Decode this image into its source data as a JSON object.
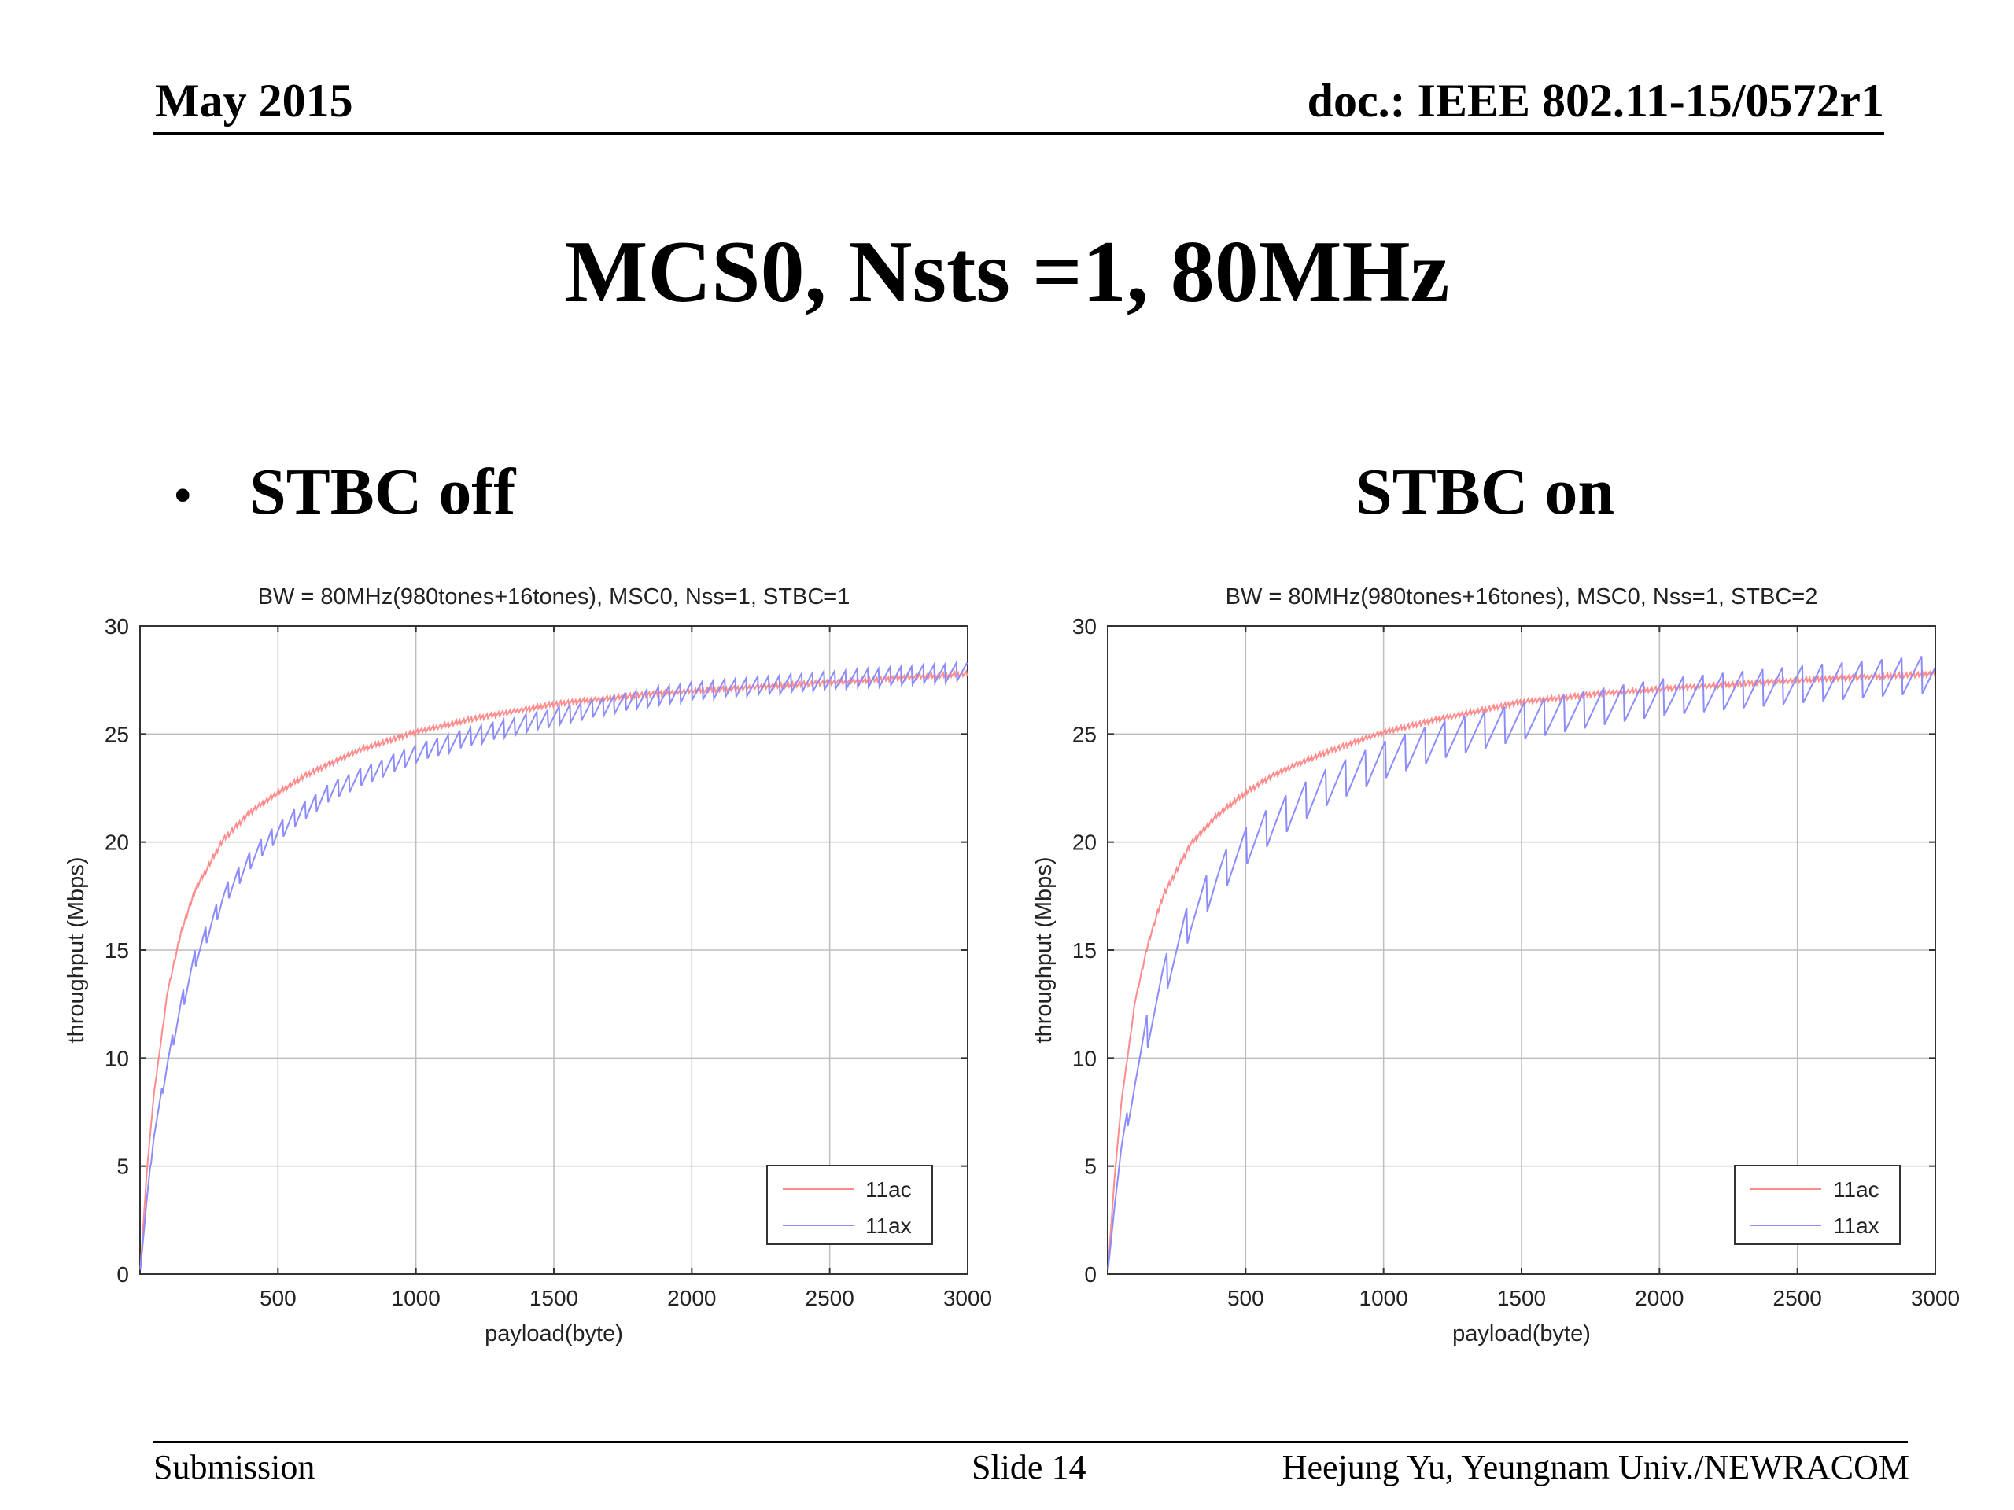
{
  "header": {
    "date": "May 2015",
    "doc": "doc.: IEEE 802.11-15/0572r1"
  },
  "slide_title": "MCS0, Nsts =1, 80MHz",
  "subtitles": {
    "left": "STBC off",
    "right": "STBC on",
    "bullet": "•"
  },
  "footer": {
    "left": "Submission",
    "center": "Slide 14",
    "right": "Heejung Yu, Yeungnam Univ./NEWRACOM"
  },
  "colors": {
    "series_11ac": "#ff8c8c",
    "series_11ax": "#8c8cff",
    "grid": "#bdbdbd"
  },
  "chart_data": [
    {
      "type": "line",
      "title": "BW = 80MHz(980tones+16tones), MSC0, Nss=1, STBC=1",
      "xlabel": "payload(byte)",
      "ylabel": "throughput (Mbps)",
      "xlim": [
        0,
        3000
      ],
      "ylim": [
        0,
        30
      ],
      "xticks": [
        500,
        1000,
        1500,
        2000,
        2500,
        3000
      ],
      "yticks": [
        0,
        5,
        10,
        15,
        20,
        25,
        30
      ],
      "grid": true,
      "legend_position": "bottom-right",
      "series": [
        {
          "name": "11ac",
          "x": [
            1,
            25,
            50,
            100,
            150,
            200,
            300,
            400,
            500,
            600,
            700,
            800,
            1000,
            1200,
            1500,
            1800,
            2000,
            2500,
            3000
          ],
          "y": [
            0.2,
            4.8,
            8.3,
            13.1,
            15.9,
            17.8,
            20.1,
            21.4,
            22.3,
            23.1,
            23.7,
            24.3,
            25.1,
            25.7,
            26.4,
            26.8,
            27.0,
            27.4,
            27.8
          ]
        },
        {
          "name": "11ax",
          "x": [
            1,
            25,
            50,
            100,
            150,
            200,
            300,
            400,
            500,
            600,
            700,
            800,
            1000,
            1200,
            1500,
            1800,
            2000,
            2500,
            3000
          ],
          "y": [
            0.2,
            3.5,
            6.4,
            9.8,
            12.5,
            14.6,
            17.4,
            19.2,
            20.5,
            21.5,
            22.4,
            23.0,
            24.1,
            24.9,
            25.8,
            26.6,
            27.0,
            27.5,
            27.9
          ]
        }
      ]
    },
    {
      "type": "line",
      "title": "BW = 80MHz(980tones+16tones), MSC0, Nss=1, STBC=2",
      "xlabel": "payload(byte)",
      "ylabel": "throughput (Mbps)",
      "xlim": [
        0,
        3000
      ],
      "ylim": [
        0,
        30
      ],
      "xticks": [
        500,
        1000,
        1500,
        2000,
        2500,
        3000
      ],
      "yticks": [
        0,
        5,
        10,
        15,
        20,
        25,
        30
      ],
      "grid": true,
      "legend_position": "bottom-right",
      "series": [
        {
          "name": "11ac",
          "x": [
            1,
            25,
            50,
            100,
            150,
            200,
            300,
            400,
            500,
            600,
            700,
            800,
            1000,
            1200,
            1500,
            1800,
            2000,
            2500,
            3000
          ],
          "y": [
            0.2,
            4.5,
            8.0,
            12.7,
            15.5,
            17.5,
            19.9,
            21.3,
            22.3,
            23.1,
            23.7,
            24.2,
            25.1,
            25.7,
            26.5,
            26.9,
            27.1,
            27.5,
            27.8
          ]
        },
        {
          "name": "11ax",
          "x": [
            1,
            25,
            50,
            100,
            150,
            200,
            300,
            400,
            500,
            600,
            700,
            800,
            1000,
            1200,
            1500,
            1800,
            2000,
            2500,
            3000
          ],
          "y": [
            0.2,
            3.2,
            5.8,
            9.0,
            11.6,
            13.6,
            16.5,
            18.4,
            19.8,
            20.9,
            21.8,
            22.6,
            23.8,
            24.7,
            25.6,
            26.3,
            26.7,
            27.3,
            27.8
          ]
        }
      ]
    }
  ]
}
